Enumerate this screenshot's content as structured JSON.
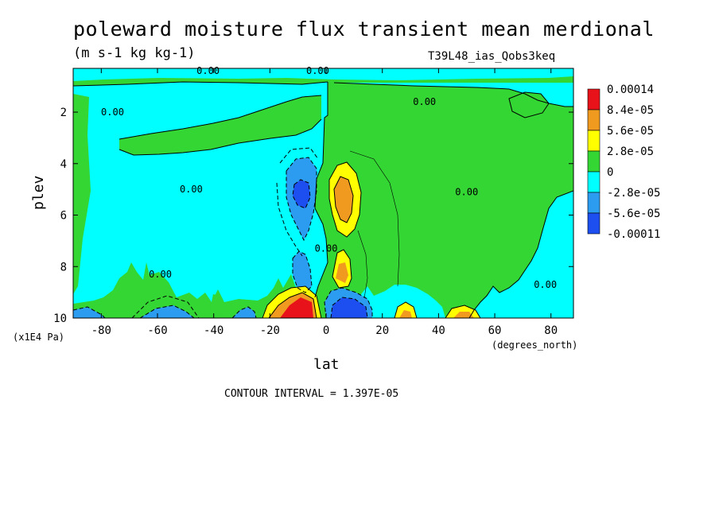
{
  "chart_data": {
    "type": "heatmap",
    "title": "poleward moisture flux transient mean merdional",
    "units": "(m s-1 kg kg-1)",
    "dataset": "T39L48_ias_Qobs3keq",
    "xlabel": "lat",
    "x_unit": "(degrees_north)",
    "ylabel": "plev",
    "y_unit": "(x1E4 Pa)",
    "xlim": [
      -90,
      88
    ],
    "ylim": [
      10,
      0.3
    ],
    "x_ticks": [
      -80,
      -60,
      -40,
      -20,
      0,
      20,
      40,
      60,
      80
    ],
    "y_ticks": [
      2,
      4,
      6,
      8,
      10
    ],
    "contour_interval": "CONTOUR INTERVAL = 1.397E-05",
    "legend": [
      {
        "label": "0.00014",
        "color": "#e8131a"
      },
      {
        "label": "8.4e-05",
        "color": "#f09a20"
      },
      {
        "label": "5.6e-05",
        "color": "#ffff00"
      },
      {
        "label": "2.8e-05",
        "color": "#33d633"
      },
      {
        "label": "0",
        "color": "#00ffff"
      },
      {
        "label": "-2.8e-05",
        "color": "#2b9cf0"
      },
      {
        "label": "-5.6e-05",
        "color": "#1d4ff0"
      },
      {
        "label": "-0.00011",
        "color": ""
      }
    ],
    "contour_labels": [
      {
        "text": "0.00",
        "lat": -42,
        "plev": 0.4
      },
      {
        "text": "0.00",
        "lat": -3,
        "plev": 0.4
      },
      {
        "text": "0.00",
        "lat": -76,
        "plev": 2.0
      },
      {
        "text": "0.00",
        "lat": 35,
        "plev": 1.6
      },
      {
        "text": "0.00",
        "lat": -48,
        "plev": 5.0
      },
      {
        "text": "0.00",
        "lat": 50,
        "plev": 5.1
      },
      {
        "text": "0.00",
        "lat": 0,
        "plev": 7.3
      },
      {
        "text": "0.00",
        "lat": -59,
        "plev": 8.3
      },
      {
        "text": "0.00",
        "lat": 78,
        "plev": 8.7
      }
    ]
  },
  "colors": {
    "green": "#33d633",
    "cyan": "#00ffff",
    "light_blue": "#2b9cf0",
    "blue": "#1d4ff0",
    "yellow": "#ffff00",
    "orange": "#f09a20",
    "red": "#e8131a"
  }
}
